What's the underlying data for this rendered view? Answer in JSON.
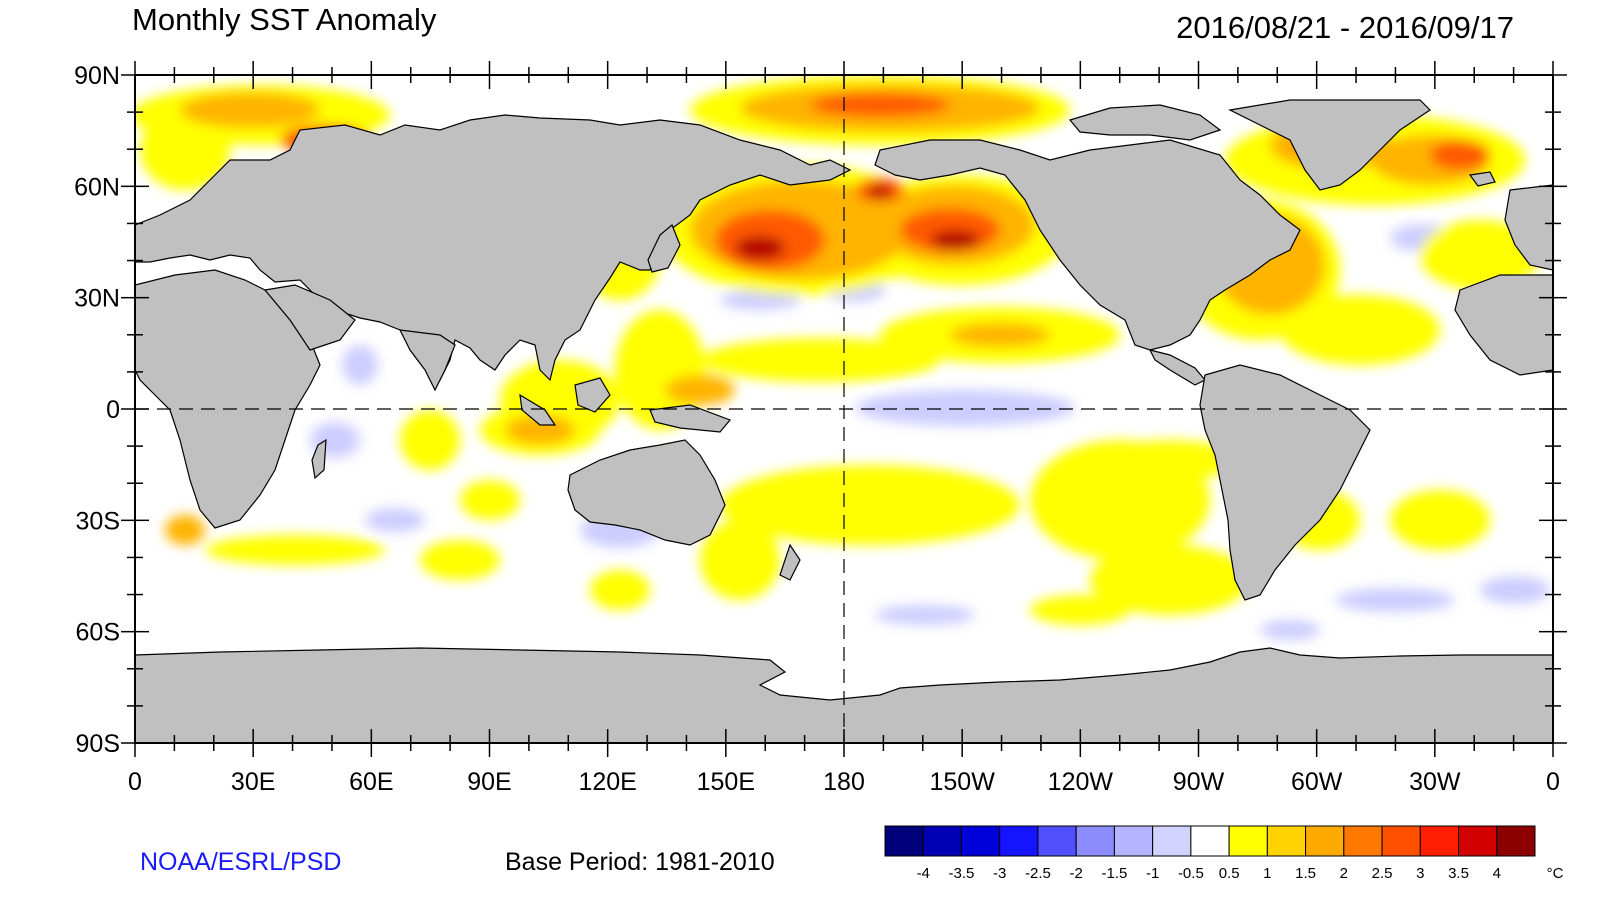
{
  "title": "Monthly SST Anomaly",
  "date_range": "2016/08/21 - 2016/09/17",
  "credit": "NOAA/ESRL/PSD",
  "base_period": "Base Period: 1981-2010",
  "lat_labels": [
    "90N",
    "60N",
    "30N",
    "0",
    "30S",
    "60S",
    "90S"
  ],
  "lon_labels": [
    "0",
    "30E",
    "60E",
    "90E",
    "120E",
    "150E",
    "180",
    "150W",
    "120W",
    "90W",
    "60W",
    "30W",
    "0"
  ],
  "legend": {
    "unit": "°C",
    "tick_labels": [
      "-4",
      "-3.5",
      "-3",
      "-2.5",
      "-2",
      "-1.5",
      "-1",
      "-0.5",
      "0.5",
      "1",
      "1.5",
      "2",
      "2.5",
      "3",
      "3.5",
      "4"
    ],
    "colors": [
      "#00007a",
      "#0000b4",
      "#0000d8",
      "#1414ff",
      "#5050ff",
      "#8c8cff",
      "#b4b4ff",
      "#d2d2ff",
      "#ffffff",
      "#ffff00",
      "#ffd200",
      "#ffaa00",
      "#ff7800",
      "#ff5000",
      "#ff1e00",
      "#d20000",
      "#8c0000"
    ]
  },
  "colors": {
    "land": "#c0c0c0",
    "ocean": "#ffffff"
  }
}
